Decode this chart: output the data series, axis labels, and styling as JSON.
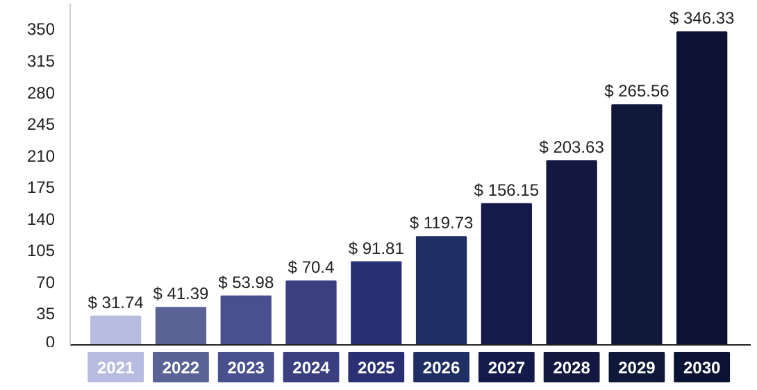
{
  "chart_data": {
    "type": "bar",
    "categories": [
      "2021",
      "2022",
      "2023",
      "2024",
      "2025",
      "2026",
      "2027",
      "2028",
      "2029",
      "2030"
    ],
    "values": [
      31.74,
      41.39,
      53.98,
      70.4,
      91.81,
      119.73,
      156.15,
      203.63,
      265.56,
      346.33
    ],
    "colors": [
      "#b7bce0",
      "#5a6296",
      "#4a4f8f",
      "#3b3f80",
      "#2b3074",
      "#1f2f63",
      "#141a4a",
      "#12183f",
      "#0f1838",
      "#0b1233"
    ],
    "value_labels": [
      "$ 31.74",
      "$ 41.39",
      "$ 53.98",
      "$ 70.4",
      "$ 91.81",
      "$ 119.73",
      "$ 156.15",
      "$ 203.63",
      "$ 265.56",
      "$ 346.33"
    ],
    "ylim": [
      0,
      378
    ],
    "yticks": [
      0,
      35,
      70,
      105,
      140,
      175,
      210,
      245,
      280,
      315,
      350
    ],
    "grid": false
  }
}
